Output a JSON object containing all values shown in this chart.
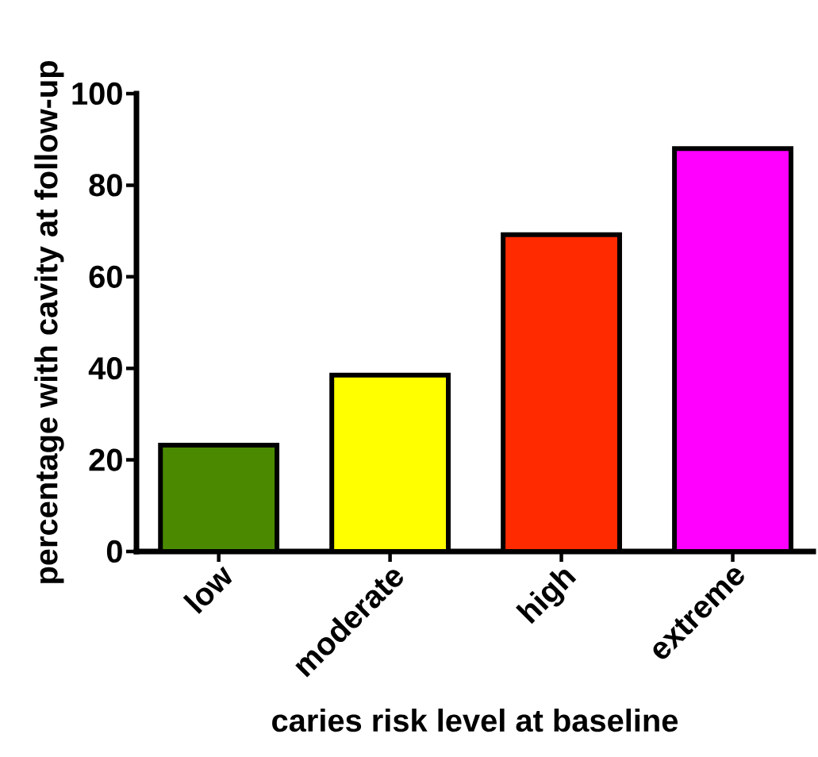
{
  "chart_data": {
    "type": "bar",
    "xlabel": "caries risk level at baseline",
    "ylabel": "percentage with cavity at follow-up",
    "categories": [
      "low",
      "moderate",
      "high",
      "extreme"
    ],
    "values": [
      23.2,
      38.5,
      69.2,
      88.0
    ],
    "colors": [
      "#4b8a00",
      "#ffff00",
      "#ff2a00",
      "#ff00ff"
    ],
    "ylim": [
      0,
      100
    ],
    "yticks": [
      0,
      20,
      40,
      60,
      80,
      100
    ]
  }
}
